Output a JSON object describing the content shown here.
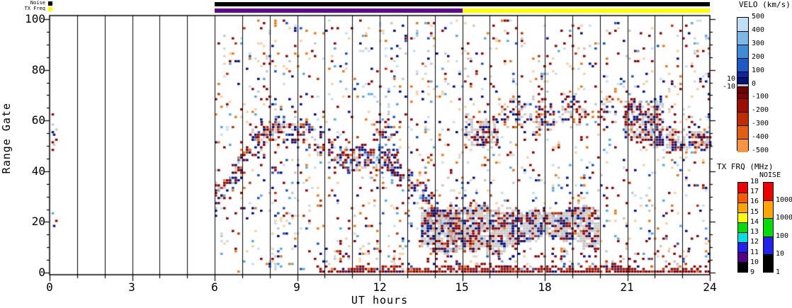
{
  "legend": {
    "noise_label": "Noise",
    "tx_freq_label": "TX Freq",
    "noise_swatch_color": "#000000",
    "tx_freq_swatch_color": "#ffff00"
  },
  "indicator_bars": {
    "noise": {
      "color": "#000000",
      "t0": 6,
      "t1": 24
    },
    "tx_freq_segments": [
      {
        "color": "#5e0a8e",
        "t0": 6,
        "t1": 15
      },
      {
        "color": "#ffff00",
        "t0": 15,
        "t1": 24
      }
    ]
  },
  "x_axis": {
    "title": "UT hours",
    "tick_labels": [
      "0",
      "3",
      "6",
      "9",
      "12",
      "15",
      "18",
      "21",
      "24"
    ],
    "range": [
      0,
      24
    ],
    "minor_tick_every_hours": 1
  },
  "y_axis": {
    "title": "Range Gate",
    "tick_labels": [
      "100",
      "80",
      "60",
      "40",
      "20",
      "0"
    ],
    "range": [
      0,
      100
    ],
    "minor_tick_every_gates": 5
  },
  "colorbars": {
    "velo": {
      "title": "VELO (km/s)",
      "tick_labels": [
        "500",
        "400",
        "300",
        "200",
        "100",
        "0",
        "-100",
        "-200",
        "-300",
        "-400",
        "-500"
      ],
      "side_labels": [
        "10",
        "-10"
      ],
      "segments": [
        "#bfdff4",
        "#7ab8e8",
        "#3c8cd6",
        "#1c5ac8",
        "#10279d",
        "#031478",
        "#c6c6c6",
        "#700000",
        "#800000",
        "#9e0e00",
        "#c02c00",
        "#e25e12",
        "#f69440"
      ],
      "segment_heights": [
        18.9,
        18.9,
        18.9,
        18.9,
        8.5,
        8.5,
        4.5,
        8.5,
        8.5,
        18.9,
        18.9,
        18.9,
        18.9
      ]
    },
    "tx_frq": {
      "title": "TX FRQ (MHz)",
      "tick_labels": [
        "18",
        "17",
        "16",
        "15",
        "14",
        "13",
        "12",
        "11",
        "10",
        "9"
      ],
      "segments": [
        "#ee0000",
        "#ff5a00",
        "#ffa500",
        "#ffff00",
        "#00dd00",
        "#00e0e0",
        "#2222ee",
        "#550088",
        "#000000"
      ]
    },
    "noise": {
      "title": "NOISE",
      "tick_labels": [
        "10000",
        "1000",
        "100",
        "10",
        "1"
      ],
      "segments": [
        "#ee0000",
        "#ffa500",
        "#00dd00",
        "#2222ee",
        "#000000"
      ]
    }
  },
  "chart_data": {
    "type": "heatmap",
    "description": "SuperDARN-style range-time parameter plot: LOS velocity vs UT hour and range gate. Data present 6-24 UT plus a few points at 0 UT. Gray = ground scatter (|v|<10 km/s), blues = positive velocity, reds/oranges = negative velocity.",
    "x": {
      "label": "UT hours",
      "min": 0,
      "max": 24
    },
    "y": {
      "label": "Range Gate",
      "min": 0,
      "max": 100
    },
    "colors": {
      "maroon": "#8b0000",
      "red": "#c03000",
      "orange": "#e87818",
      "peach": "#f8cfa0",
      "navy": "#000f82",
      "blue": "#1a50c4",
      "lightblue": "#58a8e0",
      "paleblue": "#c2ddf2",
      "gray": "#c6c6c6"
    },
    "palettes": {
      "bg": [
        [
          "maroon",
          0.2
        ],
        [
          "navy",
          0.12
        ],
        [
          "blue",
          0.06
        ],
        [
          "lightblue",
          0.1
        ],
        [
          "paleblue",
          0.14
        ],
        [
          "peach",
          0.16
        ],
        [
          "orange",
          0.09
        ],
        [
          "red",
          0.05
        ],
        [
          "gray",
          0.08
        ]
      ],
      "redheavy": [
        [
          "maroon",
          0.5
        ],
        [
          "red",
          0.12
        ],
        [
          "navy",
          0.1
        ],
        [
          "orange",
          0.08
        ],
        [
          "peach",
          0.08
        ],
        [
          "blue",
          0.04
        ],
        [
          "gray",
          0.08
        ]
      ],
      "scatter": [
        [
          "maroon",
          0.34
        ],
        [
          "navy",
          0.22
        ],
        [
          "gray",
          0.18
        ],
        [
          "red",
          0.08
        ],
        [
          "blue",
          0.06
        ],
        [
          "orange",
          0.05
        ],
        [
          "lightblue",
          0.04
        ],
        [
          "peach",
          0.03
        ]
      ],
      "scatterBlue": [
        [
          "navy",
          0.36
        ],
        [
          "maroon",
          0.24
        ],
        [
          "gray",
          0.16
        ],
        [
          "blue",
          0.1
        ],
        [
          "red",
          0.06
        ],
        [
          "orange",
          0.04
        ],
        [
          "lightblue",
          0.04
        ]
      ],
      "scatterGray": [
        [
          "gray",
          0.28
        ],
        [
          "maroon",
          0.26
        ],
        [
          "navy",
          0.22
        ],
        [
          "orange",
          0.08
        ],
        [
          "red",
          0.08
        ],
        [
          "blue",
          0.04
        ],
        [
          "peach",
          0.04
        ]
      ],
      "speckle": [
        [
          "maroon",
          0.45
        ],
        [
          "navy",
          0.32
        ],
        [
          "red",
          0.09
        ],
        [
          "blue",
          0.05
        ],
        [
          "orange",
          0.05
        ],
        [
          "peach",
          0.04
        ]
      ],
      "bottom": [
        [
          "maroon",
          0.78
        ],
        [
          "red",
          0.1
        ],
        [
          "navy",
          0.06
        ],
        [
          "orange",
          0.03
        ],
        [
          "gray",
          0.03
        ]
      ]
    },
    "features": [
      {
        "type": "noise",
        "t0": 6,
        "t1": 24,
        "g0": 0,
        "g1": 100,
        "density": 0.085,
        "palette": "bg"
      },
      {
        "type": "noise",
        "t0": 10,
        "t1": 24,
        "g0": 2,
        "g1": 9,
        "density": 0.07,
        "palette": "redheavy"
      },
      {
        "type": "band",
        "path": [
          [
            6.0,
            29
          ],
          [
            6.6,
            37
          ],
          [
            7.2,
            47
          ],
          [
            7.8,
            54
          ],
          [
            8.5,
            57
          ],
          [
            9.1,
            55
          ],
          [
            9.7,
            51
          ],
          [
            10.3,
            47
          ],
          [
            10.9,
            44
          ]
        ],
        "halfwidth": 5,
        "density": 0.5,
        "palette": "scatter"
      },
      {
        "type": "blob",
        "t": 8.0,
        "g": 56,
        "rt": 0.85,
        "rg": 6,
        "density": 0.5,
        "palette": "scatter"
      },
      {
        "type": "blob",
        "t": 11.6,
        "g": 44,
        "rt": 1.1,
        "rg": 8,
        "density": 0.55,
        "palette": "scatterBlue"
      },
      {
        "type": "blob",
        "t": 12.2,
        "g": 56,
        "rt": 0.55,
        "rg": 7,
        "density": 0.4,
        "palette": "scatter"
      },
      {
        "type": "band",
        "path": [
          [
            12.3,
            43
          ],
          [
            12.9,
            37
          ],
          [
            13.5,
            30
          ],
          [
            14.1,
            23
          ],
          [
            14.7,
            17
          ]
        ],
        "halfwidth": 6,
        "density": 0.62,
        "palette": "scatterBlue"
      },
      {
        "type": "gs",
        "t0": 13.5,
        "t1": 19.9,
        "g0": 11,
        "g1": 27,
        "fill": 0.8,
        "speckle": 0.4
      },
      {
        "type": "gs",
        "t0": 15.1,
        "t1": 16.3,
        "g0": 49,
        "g1": 61,
        "fill": 0.55,
        "speckle": 0.35
      },
      {
        "type": "blob",
        "t": 16.9,
        "g": 63,
        "rt": 0.6,
        "rg": 7,
        "density": 0.5,
        "palette": "scatterGray"
      },
      {
        "type": "blob",
        "t": 17.9,
        "g": 61,
        "rt": 0.55,
        "rg": 8,
        "density": 0.5,
        "palette": "scatterGray"
      },
      {
        "type": "blob",
        "t": 19.0,
        "g": 63,
        "rt": 0.6,
        "rg": 7,
        "density": 0.5,
        "palette": "scatterGray"
      },
      {
        "type": "blob",
        "t": 20.1,
        "g": 62,
        "rt": 0.5,
        "rg": 6,
        "density": 0.45,
        "palette": "scatterGray"
      },
      {
        "type": "gs",
        "t0": 20.9,
        "t1": 22.3,
        "g0": 53,
        "g1": 66,
        "fill": 0.5,
        "speckle": 0.45
      },
      {
        "type": "gs",
        "t0": 22.4,
        "t1": 23.9,
        "g0": 46,
        "g1": 59,
        "fill": 0.55,
        "speckle": 0.4
      },
      {
        "type": "blob",
        "t": 23.7,
        "g": 52,
        "rt": 0.35,
        "rg": 6,
        "density": 0.55,
        "palette": "scatter"
      },
      {
        "type": "bottom",
        "t0": 9.7,
        "t1": 24.0,
        "rows": 3
      }
    ],
    "early_points": [
      [
        0.07,
        62,
        "maroon"
      ],
      [
        0.07,
        58,
        "gray"
      ],
      [
        0.07,
        55,
        "navy"
      ],
      [
        0.12,
        54,
        "navy"
      ],
      [
        0.07,
        51,
        "maroon"
      ],
      [
        0.12,
        50,
        "gray"
      ],
      [
        0.07,
        48,
        "maroon"
      ],
      [
        0.07,
        23,
        "lightblue"
      ],
      [
        0.2,
        56,
        "gray"
      ],
      [
        0.2,
        52,
        "maroon"
      ],
      [
        0.2,
        20,
        "maroon"
      ],
      [
        0.12,
        18,
        "navy"
      ]
    ]
  }
}
